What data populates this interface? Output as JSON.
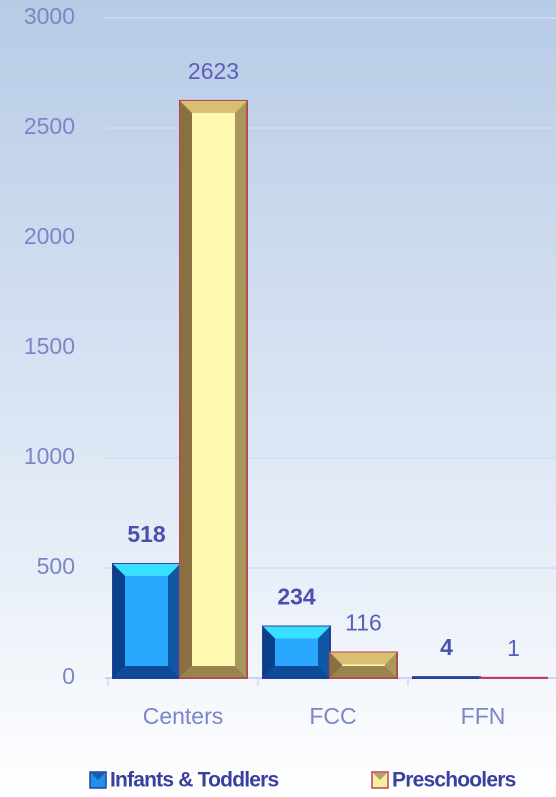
{
  "chart_data": {
    "type": "bar",
    "categories": [
      "Centers",
      "FCC",
      "FFN"
    ],
    "series": [
      {
        "name": "Infants & Toddlers",
        "color": "#1e90e8",
        "values": [
          518,
          234,
          4
        ]
      },
      {
        "name": "Preschoolers",
        "color": "#f5f0a0",
        "values": [
          2623,
          116,
          1
        ]
      }
    ],
    "ylim": [
      0,
      3000
    ],
    "yticks": [
      0,
      500,
      1000,
      1500,
      2000,
      2500,
      3000
    ],
    "grid": true,
    "legend": "bottom"
  }
}
